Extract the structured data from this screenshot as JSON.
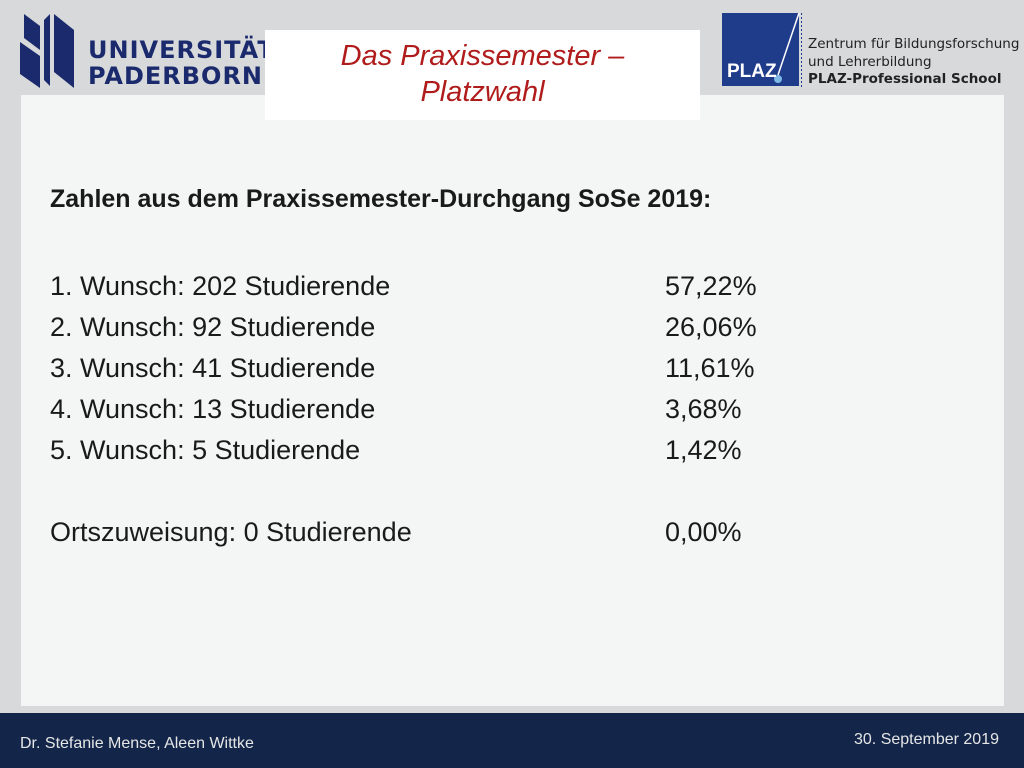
{
  "header": {
    "university_name_line1": "UNIVERSITÄT",
    "university_name_line2": "PADERBORN",
    "title_line1": "Das Praxissemester –",
    "title_line2": "Platzwahl",
    "plaz_abbreviation": "PLAZ",
    "plaz_line1": "Zentrum für Bildungsforschung",
    "plaz_line2": "und Lehrerbildung",
    "plaz_line3": "PLAZ-Professional School"
  },
  "main": {
    "heading": "Zahlen aus dem Praxissemester-Durchgang SoSe 2019:",
    "rows": [
      {
        "label": "1. Wunsch: 202 Studierende",
        "percent": "57,22%"
      },
      {
        "label": "2. Wunsch: 92 Studierende",
        "percent": "26,06%"
      },
      {
        "label": "3. Wunsch: 41 Studierende",
        "percent": "11,61%"
      },
      {
        "label": "4. Wunsch: 13 Studierende",
        "percent": "3,68%"
      },
      {
        "label": "5. Wunsch: 5 Studierende",
        "percent": "1,42%"
      }
    ],
    "summary": {
      "label": "Ortszuweisung: 0 Studierende",
      "percent": "0,00%"
    }
  },
  "footer": {
    "authors": "Dr. Stefanie Mense, Aleen Wittke",
    "date": "30. September 2019"
  },
  "colors": {
    "title": "#b01c1c",
    "university_blue": "#1a2a6c",
    "plaz_blue": "#1f3c8a",
    "footer_bg": "#13264a",
    "page_bg": "#d7d9db",
    "content_bg": "#f4f5f5"
  },
  "icons": {
    "university_logo": "university-paderborn-logo",
    "plaz_logo": "plaz-logo"
  }
}
